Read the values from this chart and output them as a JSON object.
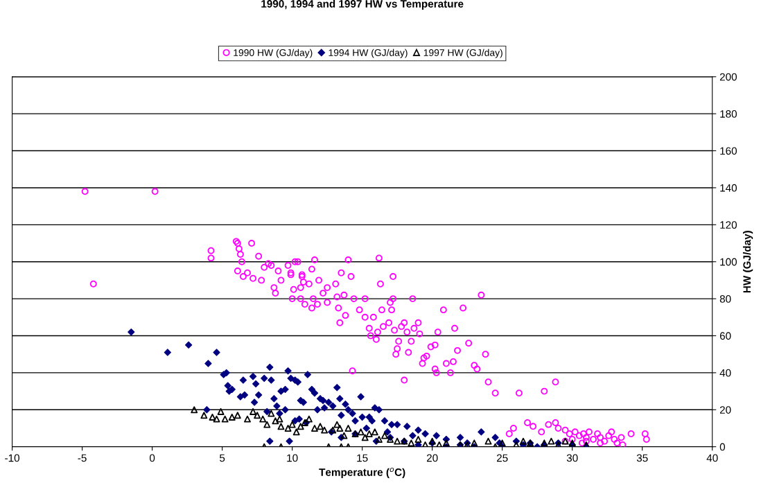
{
  "chart_data": {
    "type": "scatter",
    "title": "1990, 1994 and 1997 HW vs Temperature",
    "xlabel": "Temperature ($^{o}$C)",
    "ylabel": "HW (GJ/day)",
    "xlim": [
      -10,
      40
    ],
    "xticks": [
      -10,
      -5,
      0,
      5,
      10,
      15,
      20,
      25,
      30,
      35,
      40
    ],
    "ylim": [
      0,
      200
    ],
    "yticks": [
      0,
      20,
      40,
      60,
      80,
      100,
      120,
      140,
      160,
      180,
      200
    ],
    "grid": "y",
    "legend": "top",
    "series": [
      {
        "name": "1990 HW (GJ/day)",
        "color": "#ff00ff",
        "marker": "circle",
        "x": [
          -4.8,
          0.2,
          -4.2,
          4.2,
          4.2,
          6,
          6.1,
          6.2,
          6.3,
          6.1,
          6.4,
          6.5,
          6.8,
          7.1,
          7.2,
          7.6,
          7.8,
          8,
          8.3,
          8.5,
          8.7,
          8.8,
          9,
          9.2,
          9.7,
          9.9,
          9.9,
          10,
          10.1,
          10.2,
          10.4,
          10.6,
          10.6,
          10.7,
          10.7,
          10.8,
          10.9,
          11.2,
          11.4,
          11.4,
          11.5,
          11.6,
          11.8,
          11.9,
          12.2,
          12.5,
          12.5,
          13.1,
          13.2,
          13.3,
          13.4,
          13.5,
          13.7,
          13.8,
          14,
          14.2,
          14.3,
          14.4,
          14.8,
          15.2,
          15.2,
          15.5,
          15.6,
          15.8,
          16,
          16.1,
          16.2,
          16.3,
          16.4,
          16.5,
          16.9,
          17,
          17.1,
          17.2,
          17.2,
          17.3,
          17.4,
          17.5,
          17.6,
          17.8,
          18,
          18,
          18.2,
          18.3,
          18.5,
          18.6,
          18.7,
          19,
          19.1,
          19.3,
          19.4,
          19.6,
          19.9,
          20.2,
          20.2,
          20.3,
          20.4,
          20.8,
          21,
          21.3,
          21.5,
          21.6,
          21.8,
          22.2,
          22.6,
          23,
          23.2,
          23.5,
          23.8,
          24,
          24.5,
          26.2,
          28,
          28.8,
          25.5,
          25.8,
          26.8,
          27.2,
          27.8,
          28.3,
          28.8,
          29,
          29.5,
          29.8,
          30.2,
          30.5,
          30.8,
          31,
          31.2,
          31.5,
          31.8,
          32,
          32.3,
          32.6,
          32.8,
          33,
          33.2,
          33.5,
          34.2,
          35.2,
          35.3,
          30,
          31,
          32,
          29.5,
          30.7,
          33.6
        ],
        "values": [
          138,
          138,
          88,
          106,
          102,
          111,
          110,
          107,
          104,
          95,
          100,
          92,
          94,
          110,
          91,
          103,
          90,
          97,
          99,
          98,
          86,
          83,
          95,
          90,
          98,
          94,
          93,
          80,
          85,
          100,
          100,
          86,
          80,
          93,
          92,
          89,
          77,
          88,
          96,
          75,
          80,
          101,
          77,
          90,
          83,
          86,
          78,
          88,
          81,
          75,
          67,
          94,
          82,
          71,
          101,
          92,
          41,
          80,
          74,
          80,
          70,
          64,
          60,
          70,
          58,
          62,
          102,
          88,
          74,
          65,
          67,
          78,
          74,
          80,
          92,
          63,
          50,
          53,
          57,
          65,
          67,
          36,
          62,
          51,
          57,
          80,
          64,
          67,
          61,
          45,
          48,
          49,
          54,
          55,
          42,
          40,
          62,
          74,
          45,
          40,
          46,
          64,
          52,
          75,
          56,
          44,
          42,
          82,
          50,
          35,
          29,
          29,
          30,
          35,
          7,
          10,
          13,
          11,
          8,
          12,
          13,
          10,
          9,
          7,
          8,
          6,
          7,
          5,
          8,
          4,
          7,
          5,
          3,
          6,
          8,
          4,
          2,
          5,
          7,
          7,
          4,
          4,
          3,
          2,
          3,
          2,
          1
        ]
      },
      {
        "name": "1994 HW (GJ/day)",
        "color": "#000080",
        "marker": "diamond",
        "x": [
          -1.5,
          1.1,
          2.6,
          4,
          4.6,
          5.1,
          5.3,
          5.4,
          5.5,
          5.7,
          3.9,
          6.5,
          6.6,
          6.3,
          7.2,
          7.4,
          7.6,
          7.3,
          8,
          8.2,
          8.4,
          8.5,
          8.7,
          8.9,
          9.1,
          8.4,
          9.2,
          9.5,
          9.7,
          9.9,
          10.2,
          10.4,
          10.6,
          10.8,
          10.2,
          9.8,
          11.1,
          11.4,
          11.6,
          11.8,
          12,
          12.2,
          12.3,
          12.6,
          12.9,
          13.2,
          13.4,
          13.5,
          13.8,
          14,
          14.3,
          14.5,
          14.9,
          15,
          15.3,
          15.5,
          15.7,
          15.9,
          16.2,
          16.6,
          16.8,
          17.1,
          17.5,
          18.2,
          18.6,
          19,
          19.5,
          20.3,
          21,
          22,
          22.5,
          23.5,
          24.5,
          24.8,
          26,
          27,
          28,
          29,
          30,
          31,
          16,
          17,
          18,
          19,
          20,
          21,
          22,
          23,
          25,
          26.5,
          27.5,
          13.5,
          14.5,
          12.8,
          10.5,
          11,
          9.5
        ],
        "values": [
          62,
          51,
          55,
          45,
          51,
          39,
          40,
          33,
          30,
          31,
          20,
          36,
          28,
          27,
          38,
          34,
          28,
          24,
          37,
          19,
          43,
          36,
          26,
          22,
          18,
          3,
          30,
          31,
          41,
          37,
          36,
          35,
          25,
          24,
          14,
          3,
          39,
          31,
          29,
          20,
          26,
          25,
          21,
          24,
          22,
          32,
          26,
          17,
          23,
          20,
          18,
          14,
          27,
          16,
          10,
          16,
          14,
          21,
          20,
          14,
          8,
          12,
          12,
          11,
          6,
          9,
          7,
          6,
          4,
          5,
          2,
          8,
          5,
          2,
          3,
          2,
          1,
          2,
          1,
          0,
          3,
          5,
          3,
          1,
          2,
          0,
          1,
          0,
          0,
          1,
          0,
          5,
          7,
          8,
          15,
          13,
          20
        ]
      },
      {
        "name": "1997 HW (GJ/day)",
        "color": "#000000",
        "marker": "triangle",
        "x": [
          3,
          3.7,
          4.3,
          4.6,
          4.9,
          5.2,
          5.7,
          6.1,
          6.8,
          7.2,
          7.5,
          7.9,
          8.2,
          8.5,
          8.8,
          9.1,
          9.2,
          9.7,
          10,
          10.3,
          10.6,
          10.9,
          11.2,
          11.6,
          12,
          12.3,
          12.9,
          13.2,
          13.4,
          13.7,
          14,
          14.5,
          14.9,
          15.2,
          15.5,
          15.9,
          16.2,
          16.6,
          17,
          17.5,
          18,
          18.5,
          19,
          19.5,
          20,
          20.5,
          21,
          22,
          23,
          24,
          25,
          26,
          27,
          28,
          29,
          30,
          31,
          8,
          9.2,
          12.6,
          13.5,
          14,
          22.5,
          24.5,
          26.5,
          28.5,
          29.5
        ],
        "values": [
          20,
          17,
          16,
          15,
          19,
          15,
          16,
          17,
          15,
          19,
          17,
          15,
          12,
          18,
          14,
          15,
          11,
          10,
          12,
          8,
          11,
          13,
          15,
          10,
          11,
          9,
          9,
          12,
          10,
          6,
          10,
          7,
          8,
          5,
          7,
          8,
          4,
          6,
          4,
          3,
          3,
          2,
          4,
          1,
          3,
          1,
          2,
          1,
          2,
          3,
          2,
          1,
          2,
          2,
          1,
          2,
          1,
          0,
          0,
          0,
          0,
          0,
          1,
          0,
          3,
          3,
          3
        ]
      }
    ]
  }
}
